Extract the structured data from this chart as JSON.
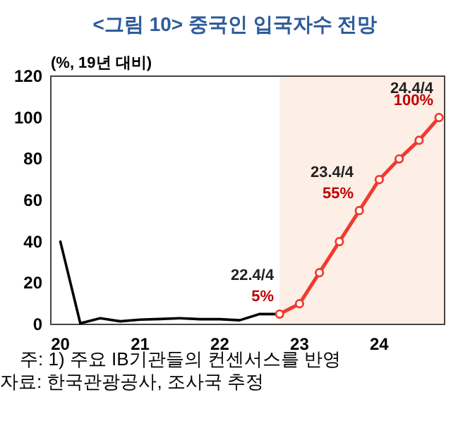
{
  "chart_data": {
    "type": "line",
    "title": "<그림 10> 중국인 입국자수 전망",
    "ylabel": "(%, 19년 대비)",
    "xlim": [
      2019.88,
      2024.82
    ],
    "ylim": [
      0,
      120
    ],
    "xticks": [
      {
        "value": 2020,
        "label": "20"
      },
      {
        "value": 2021,
        "label": "21"
      },
      {
        "value": 2022,
        "label": "22"
      },
      {
        "value": 2023,
        "label": "23"
      },
      {
        "value": 2024,
        "label": "24"
      }
    ],
    "yticks": [
      0,
      20,
      40,
      60,
      80,
      100,
      120
    ],
    "series": [
      {
        "color": "#000000",
        "marker": "none",
        "x": [
          2020,
          2020.25,
          2020.5,
          2020.75,
          2021,
          2021.25,
          2021.5,
          2021.75,
          2022,
          2022.25,
          2022.5,
          2022.75
        ],
        "values": [
          40,
          0.5,
          3,
          1.5,
          2.3,
          2.6,
          3,
          2.5,
          2.5,
          2,
          5,
          5
        ]
      },
      {
        "color": "#f03a2e",
        "marker": "circle",
        "x": [
          2022.75,
          2023,
          2023.25,
          2023.5,
          2023.75,
          2024,
          2024.25,
          2024.5,
          2024.75
        ],
        "values": [
          5,
          10,
          25,
          40,
          55,
          70,
          80,
          89,
          100
        ]
      }
    ],
    "bands": [
      {
        "axis": "x",
        "from": 2022.75,
        "to": 2024.82,
        "color": "#fdeee6"
      }
    ],
    "annotations": [
      {
        "text": "22.4/4",
        "x": 2022.75,
        "y": 5
      },
      {
        "text": "5%",
        "x": 2022.75,
        "y": 5
      },
      {
        "text": "23.4/4",
        "x": 2023.75,
        "y": 55
      },
      {
        "text": "55%",
        "x": 2023.75,
        "y": 55
      },
      {
        "text": "24.4/4",
        "x": 2024.75,
        "y": 100
      },
      {
        "text": "100%",
        "x": 2024.75,
        "y": 100
      },
      "주: 1) 주요 IB기관들의 컨센서스를 반영",
      "자료: 한국관광공사, 조사국 추정"
    ],
    "grid": false
  }
}
